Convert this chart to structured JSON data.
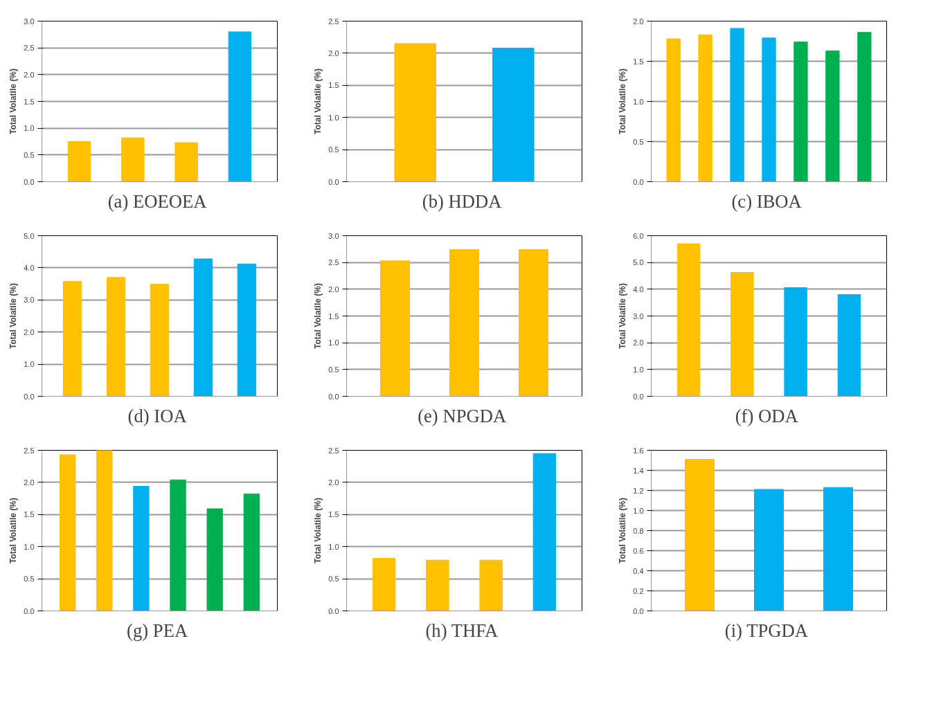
{
  "chart_data": [
    {
      "type": "bar",
      "title": "(a)  EOEOEA",
      "ylabel": "Total Volatile (%)",
      "categories": [
        null,
        null,
        null,
        null
      ],
      "values": [
        0.75,
        0.82,
        0.73,
        2.8
      ],
      "colors": [
        "#ffc000",
        "#ffc000",
        "#ffc000",
        "#00b0f0"
      ],
      "ylim": [
        0,
        3
      ],
      "yticks": [
        {
          "value": 0,
          "label": "0.0"
        },
        {
          "value": 0.5,
          "label": "0.5"
        },
        {
          "value": 1,
          "label": "1.0"
        },
        {
          "value": 1.5,
          "label": "1.5"
        },
        {
          "value": 2,
          "label": "2.0"
        },
        {
          "value": 2.5,
          "label": "2.5"
        },
        {
          "value": 3,
          "label": "3.0"
        }
      ],
      "grid": "y",
      "tick_labels": "y"
    },
    {
      "type": "bar",
      "title": "(b)  HDDA",
      "ylabel": "Total Volatile (%)",
      "categories": [
        null,
        null
      ],
      "values": [
        2.15,
        2.08
      ],
      "colors": [
        "#ffc000",
        "#00b0f0"
      ],
      "ylim": [
        0,
        2.5
      ],
      "yticks": [
        {
          "value": 0,
          "label": "0.0"
        },
        {
          "value": 0.5,
          "label": "0.5"
        },
        {
          "value": 1,
          "label": "1.0"
        },
        {
          "value": 1.5,
          "label": "1.5"
        },
        {
          "value": 2,
          "label": "2.0"
        },
        {
          "value": 2.5,
          "label": "2.5"
        }
      ],
      "grid": "y",
      "tick_labels": "y"
    },
    {
      "type": "bar",
      "title": "(c)  IBOA",
      "ylabel": "Total Volatile (%)",
      "categories": [
        null,
        null,
        null,
        null,
        null,
        null,
        null
      ],
      "values": [
        1.78,
        1.83,
        1.91,
        1.79,
        1.74,
        1.63,
        1.86
      ],
      "colors": [
        "#ffc000",
        "#ffc000",
        "#00b0f0",
        "#00b0f0",
        "#00b050",
        "#00b050",
        "#00b050"
      ],
      "ylim": [
        0,
        2
      ],
      "yticks": [
        {
          "value": 0,
          "label": "0.0"
        },
        {
          "value": 0.5,
          "label": "0.5"
        },
        {
          "value": 1,
          "label": "1.0"
        },
        {
          "value": 1.5,
          "label": "1.5"
        },
        {
          "value": 2,
          "label": "2.0"
        }
      ],
      "grid": "y",
      "tick_labels": "y"
    },
    {
      "type": "bar",
      "title": "(d)  IOA",
      "ylabel": "Total Volatile (%)",
      "categories": [
        null,
        null,
        null,
        null,
        null
      ],
      "values": [
        3.58,
        3.7,
        3.49,
        4.28,
        4.12
      ],
      "colors": [
        "#ffc000",
        "#ffc000",
        "#ffc000",
        "#00b0f0",
        "#00b0f0"
      ],
      "ylim": [
        0,
        5
      ],
      "yticks": [
        {
          "value": 0,
          "label": "0.0"
        },
        {
          "value": 1,
          "label": "1.0"
        },
        {
          "value": 2,
          "label": "2.0"
        },
        {
          "value": 3,
          "label": "3.0"
        },
        {
          "value": 4,
          "label": "4.0"
        },
        {
          "value": 5,
          "label": "5.0"
        }
      ],
      "grid": "y",
      "tick_labels": "y"
    },
    {
      "type": "bar",
      "title": "(e)  NPGDA",
      "ylabel": "Total Volatile (%)",
      "categories": [
        null,
        null,
        null
      ],
      "values": [
        2.53,
        2.74,
        2.74
      ],
      "colors": [
        "#ffc000",
        "#ffc000",
        "#ffc000"
      ],
      "ylim": [
        0,
        3
      ],
      "yticks": [
        {
          "value": 0,
          "label": "0.0"
        },
        {
          "value": 0.5,
          "label": "0.5"
        },
        {
          "value": 1,
          "label": "1.0"
        },
        {
          "value": 1.5,
          "label": "1.5"
        },
        {
          "value": 2,
          "label": "2.0"
        },
        {
          "value": 2.5,
          "label": "2.5"
        },
        {
          "value": 3,
          "label": "3.0"
        }
      ],
      "grid": "y",
      "tick_labels": "y"
    },
    {
      "type": "bar",
      "title": "(f)  ODA",
      "ylabel": "Total Volatile (%)",
      "categories": [
        null,
        null,
        null,
        null
      ],
      "values": [
        5.7,
        4.63,
        4.06,
        3.8
      ],
      "colors": [
        "#ffc000",
        "#ffc000",
        "#00b0f0",
        "#00b0f0"
      ],
      "ylim": [
        0,
        6
      ],
      "yticks": [
        {
          "value": 0,
          "label": "0.0"
        },
        {
          "value": 1,
          "label": "1.0"
        },
        {
          "value": 2,
          "label": "2.0"
        },
        {
          "value": 3,
          "label": "3.0"
        },
        {
          "value": 4,
          "label": "4.0"
        },
        {
          "value": 5,
          "label": "5.0"
        },
        {
          "value": 6,
          "label": "6.0"
        }
      ],
      "grid": "y",
      "tick_labels": "y"
    },
    {
      "type": "bar",
      "title": "(g)  PEA",
      "ylabel": "Total Volatile (%)",
      "categories": [
        null,
        null,
        null,
        null,
        null,
        null
      ],
      "values": [
        2.43,
        2.5,
        1.94,
        2.04,
        1.59,
        1.82
      ],
      "colors": [
        "#ffc000",
        "#ffc000",
        "#00b0f0",
        "#00b050",
        "#00b050",
        "#00b050"
      ],
      "ylim": [
        0,
        2.5
      ],
      "yticks": [
        {
          "value": 0,
          "label": "0.0"
        },
        {
          "value": 0.5,
          "label": "0.5"
        },
        {
          "value": 1,
          "label": "1.0"
        },
        {
          "value": 1.5,
          "label": "1.5"
        },
        {
          "value": 2,
          "label": "2.0"
        },
        {
          "value": 2.5,
          "label": "2.5"
        }
      ],
      "grid": "y",
      "tick_labels": "y"
    },
    {
      "type": "bar",
      "title": "(h)  THFA",
      "ylabel": "Total Volatile (%)",
      "categories": [
        null,
        null,
        null,
        null
      ],
      "values": [
        0.82,
        0.79,
        0.79,
        2.45
      ],
      "colors": [
        "#ffc000",
        "#ffc000",
        "#ffc000",
        "#00b0f0"
      ],
      "ylim": [
        0,
        2.5
      ],
      "yticks": [
        {
          "value": 0,
          "label": "0.0"
        },
        {
          "value": 0.5,
          "label": "0.5"
        },
        {
          "value": 1,
          "label": "1.0"
        },
        {
          "value": 1.5,
          "label": "1.5"
        },
        {
          "value": 2,
          "label": "2.0"
        },
        {
          "value": 2.5,
          "label": "2.5"
        }
      ],
      "grid": "y",
      "tick_labels": "y"
    },
    {
      "type": "bar",
      "title": "(i)  TPGDA",
      "ylabel": "Total Volatile (%)",
      "categories": [
        null,
        null,
        null
      ],
      "values": [
        1.51,
        1.21,
        1.23
      ],
      "colors": [
        "#ffc000",
        "#00b0f0",
        "#00b0f0"
      ],
      "ylim": [
        0,
        1.6
      ],
      "yticks": [
        {
          "value": 0,
          "label": "0.0"
        },
        {
          "value": 0.2,
          "label": "0.2"
        },
        {
          "value": 0.4,
          "label": "0.4"
        },
        {
          "value": 0.6,
          "label": "0.6"
        },
        {
          "value": 0.8,
          "label": "0.8"
        },
        {
          "value": 1,
          "label": "1.0"
        },
        {
          "value": 1.2,
          "label": "1.2"
        },
        {
          "value": 1.4,
          "label": "1.4"
        },
        {
          "value": 1.6,
          "label": "1.6"
        }
      ],
      "grid": "y",
      "tick_labels": "y"
    }
  ]
}
